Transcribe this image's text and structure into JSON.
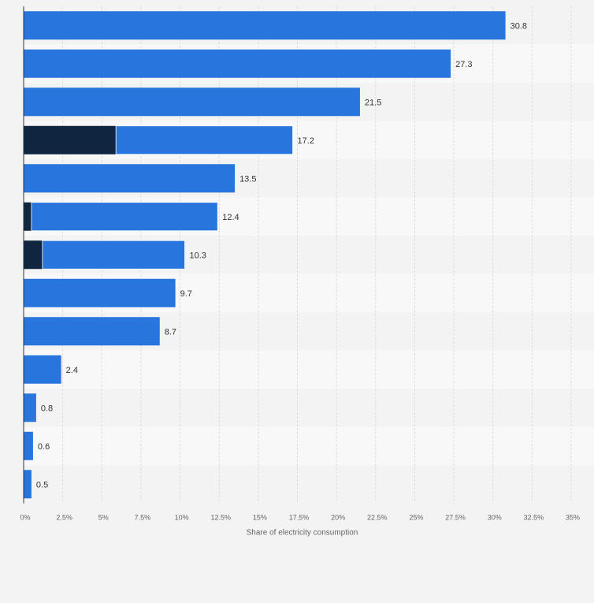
{
  "chart_data": {
    "type": "bar",
    "orientation": "horizontal",
    "stacked": true,
    "categories": [
      "",
      "",
      "",
      "",
      "",
      "",
      "",
      "",
      "",
      "",
      "",
      "",
      ""
    ],
    "series": [
      {
        "color": "#0f2540",
        "values": [
          0,
          0,
          0,
          5.9,
          0,
          0.5,
          1.2,
          0,
          0,
          0,
          0,
          0,
          0
        ]
      },
      {
        "color": "#2876dd",
        "values": [
          30.8,
          27.3,
          21.5,
          11.3,
          13.5,
          11.9,
          9.1,
          9.7,
          8.7,
          2.4,
          0.8,
          0.6,
          0.5
        ]
      }
    ],
    "data_labels": [
      "30.8",
      "27.3",
      "21.5",
      "17.2",
      "13.5",
      "12.4",
      "10.3",
      "9.7",
      "8.7",
      "2.4",
      "0.8",
      "0.6",
      "0.5"
    ],
    "xlim": [
      0,
      35
    ],
    "x_ticks": [
      0,
      2.5,
      5,
      7.5,
      10,
      12.5,
      15,
      17.5,
      20,
      22.5,
      25,
      27.5,
      30,
      32.5,
      35
    ],
    "x_tick_labels": [
      "0%",
      "2.5%",
      "5%",
      "7.5%",
      "10%",
      "12.5%",
      "15%",
      "17.5%",
      "20%",
      "22.5%",
      "25%",
      "27.5%",
      "30%",
      "32.5%",
      "35%"
    ],
    "xlabel": "Share of electricity consumption",
    "ylabel": "",
    "title": "",
    "grid": true,
    "background_color": "#f3f3f3",
    "band_colors": [
      "#f3f3f3",
      "#f8f8f8"
    ],
    "grid_color": "#dcdcdc",
    "label_color": "#333333",
    "axis_text_color": "#666666"
  }
}
